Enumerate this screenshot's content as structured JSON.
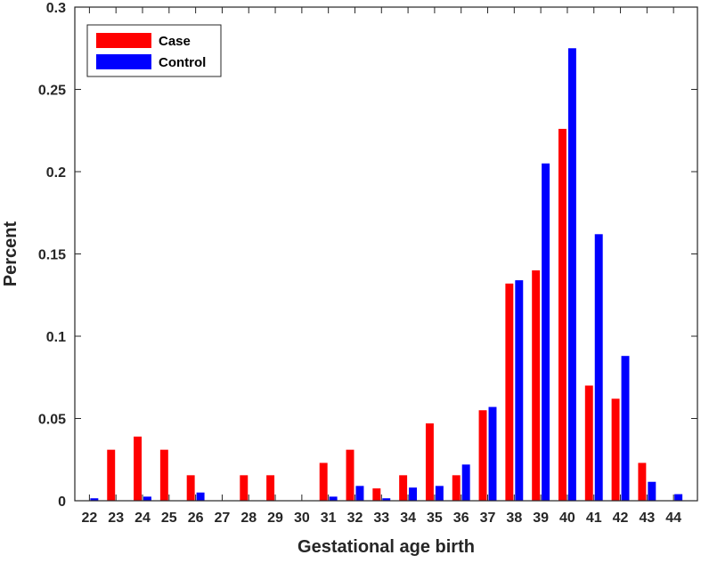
{
  "chart_data": {
    "type": "bar",
    "title": "",
    "xlabel": "Gestational age birth",
    "ylabel": "Percent",
    "ylim": [
      0,
      0.3
    ],
    "yticks": [
      "0",
      "0.05",
      "0.1",
      "0.15",
      "0.2",
      "0.25",
      "0.3"
    ],
    "ytick_values": [
      0,
      0.05,
      0.1,
      0.15,
      0.2,
      0.25,
      0.3
    ],
    "categories": [
      "22",
      "23",
      "24",
      "25",
      "26",
      "27",
      "28",
      "29",
      "30",
      "31",
      "32",
      "33",
      "34",
      "35",
      "36",
      "37",
      "38",
      "39",
      "40",
      "41",
      "42",
      "43",
      "44"
    ],
    "grid": false,
    "legend_position": "top-left",
    "series": [
      {
        "name": "Case",
        "color": "#ff0000",
        "values": [
          0,
          0.031,
          0.039,
          0.031,
          0.0155,
          0,
          0.0155,
          0.0155,
          0,
          0.023,
          0.031,
          0.0075,
          0.0155,
          0.047,
          0.0155,
          0.055,
          0.132,
          0.14,
          0.226,
          0.07,
          0.062,
          0.023,
          0
        ]
      },
      {
        "name": "Control",
        "color": "#0000ff",
        "values": [
          0.0015,
          0,
          0.0025,
          0,
          0.005,
          0,
          0,
          0,
          0,
          0.0025,
          0.009,
          0.0015,
          0.008,
          0.009,
          0.022,
          0.057,
          0.134,
          0.205,
          0.275,
          0.162,
          0.088,
          0.0115,
          0.004
        ]
      }
    ]
  }
}
